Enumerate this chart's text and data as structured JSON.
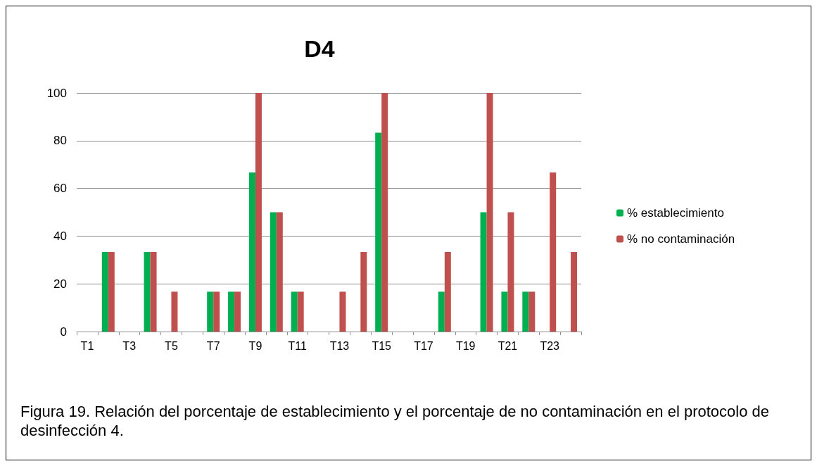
{
  "chart_data": {
    "type": "bar",
    "title": "D4",
    "categories": [
      "T1",
      null,
      "T3",
      null,
      "T5",
      null,
      "T7",
      null,
      "T9",
      null,
      "T11",
      null,
      "T13",
      null,
      "T15",
      null,
      "T17",
      null,
      "T19",
      null,
      "T21",
      null,
      "T23",
      null
    ],
    "series": [
      {
        "name": "% establecimiento",
        "color": "#00b050",
        "values": [
          0,
          33.3,
          0,
          33.3,
          0,
          0,
          16.7,
          16.7,
          66.7,
          50,
          16.7,
          0,
          0,
          0,
          83.3,
          0,
          0,
          16.7,
          0,
          50,
          16.7,
          16.7,
          0,
          0
        ]
      },
      {
        "name": "% no contaminación",
        "color": "#c0504d",
        "values": [
          0,
          33.3,
          0,
          33.3,
          16.7,
          0,
          16.7,
          16.7,
          100,
          50,
          16.7,
          0,
          16.7,
          33.3,
          100,
          0,
          0,
          33.3,
          0,
          100,
          50,
          16.7,
          66.7,
          33.3
        ]
      }
    ],
    "ylim": [
      0,
      100
    ],
    "yticks": [
      0,
      20,
      40,
      60,
      80,
      100
    ],
    "grid": "y",
    "legend": "right",
    "annotations": [
      "Figura 19. Relación del porcentaje de establecimiento y el porcentaje de no contaminación en el protocolo de desinfección 4."
    ]
  }
}
